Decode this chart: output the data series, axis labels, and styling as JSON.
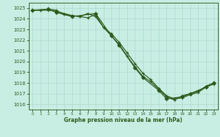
{
  "title": "Graphe pression niveau de la mer (hPa)",
  "bg_color": "#c8eee4",
  "grid_color": "#aad8cc",
  "line_color": "#2d5a1b",
  "ylim": [
    1015.5,
    1025.5
  ],
  "xlim": [
    -0.5,
    23.5
  ],
  "yticks": [
    1016,
    1017,
    1018,
    1019,
    1020,
    1021,
    1022,
    1023,
    1024,
    1025
  ],
  "xticks": [
    0,
    1,
    2,
    3,
    4,
    5,
    6,
    7,
    8,
    9,
    10,
    11,
    12,
    13,
    14,
    15,
    16,
    17,
    18,
    19,
    20,
    21,
    22,
    23
  ],
  "series1_x": [
    0,
    1,
    2,
    3,
    4,
    5,
    6,
    7,
    8,
    9,
    10,
    11,
    12,
    13,
    14,
    15,
    16,
    17,
    18,
    19,
    20,
    21,
    22,
    23
  ],
  "series1_y": [
    1024.8,
    1024.8,
    1024.8,
    1024.7,
    1024.5,
    1024.3,
    1024.2,
    1024.1,
    1024.4,
    1023.2,
    1022.6,
    1021.8,
    1020.8,
    1019.8,
    1018.9,
    1018.3,
    1017.5,
    1016.8,
    1016.5,
    1016.6,
    1016.9,
    1017.1,
    1017.6,
    1017.9
  ],
  "series2_x": [
    0,
    1,
    2,
    3,
    4,
    5,
    6,
    7,
    8,
    9,
    10,
    11,
    12,
    13,
    14,
    15,
    16,
    17,
    18,
    19,
    20,
    21,
    22,
    23
  ],
  "series2_y": [
    1024.8,
    1024.8,
    1024.9,
    1024.8,
    1024.4,
    1024.3,
    1024.2,
    1024.5,
    1024.2,
    1023.2,
    1022.4,
    1021.6,
    1020.5,
    1019.5,
    1018.6,
    1018.1,
    1017.4,
    1016.7,
    1016.4,
    1016.8,
    1017.0,
    1017.2,
    1017.7,
    1018.0
  ],
  "series3_x": [
    0,
    2,
    3,
    5,
    8,
    10,
    11,
    13,
    14,
    16,
    17,
    19,
    20,
    22,
    23
  ],
  "series3_y": [
    1024.8,
    1024.9,
    1024.6,
    1024.2,
    1024.5,
    1022.4,
    1021.5,
    1019.4,
    1018.5,
    1017.3,
    1016.5,
    1016.7,
    1017.0,
    1017.6,
    1018.0
  ]
}
